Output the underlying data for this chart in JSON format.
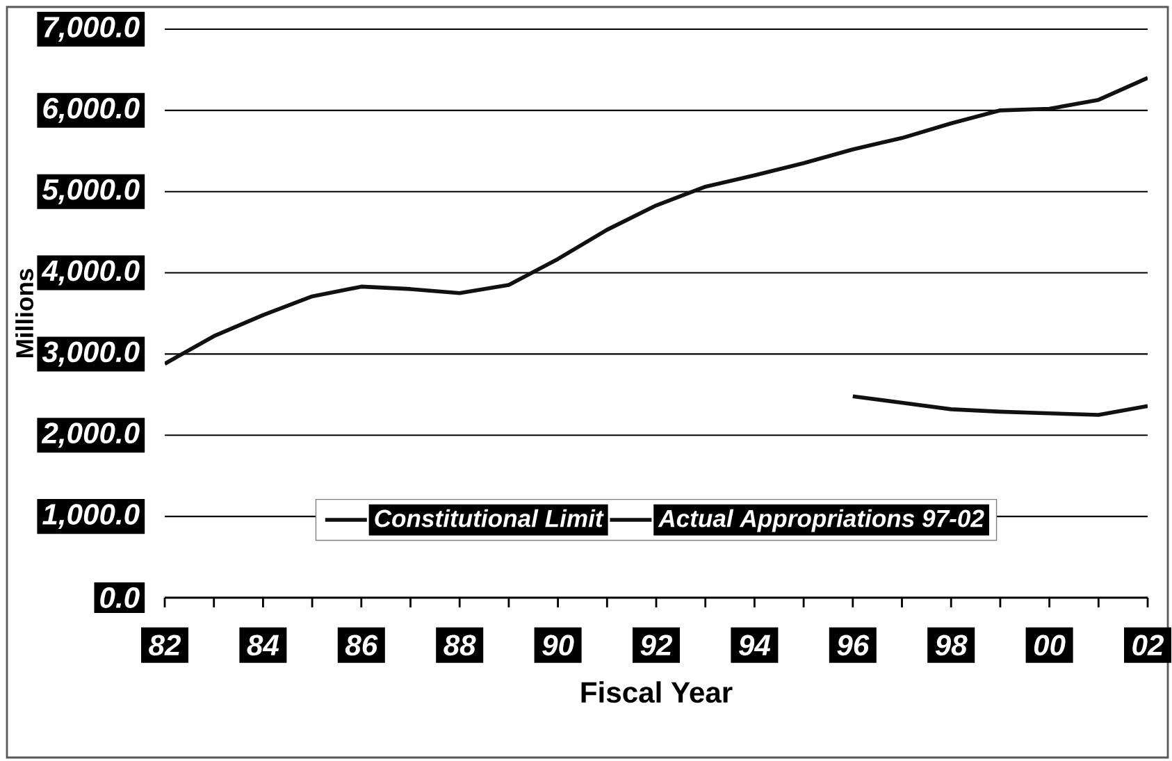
{
  "chart_data": {
    "type": "line",
    "xlabel": "Fiscal Year",
    "ylabel": "Millions",
    "categories": [
      "82",
      null,
      "84",
      null,
      "86",
      null,
      "88",
      null,
      "90",
      null,
      "92",
      null,
      "94",
      null,
      "96",
      null,
      "98",
      null,
      "00",
      null,
      "02"
    ],
    "series": [
      {
        "name": "Constitutional Limit",
        "color": "#111111",
        "values": [
          2880,
          3220,
          3480,
          3710,
          3830,
          3800,
          3750,
          3850,
          4170,
          4530,
          4830,
          5060,
          5200,
          5350,
          5520,
          5660,
          5840,
          6000,
          6020,
          6130,
          6400
        ]
      },
      {
        "name": "Actual Appropriations 97-02",
        "color": "#111111",
        "values": [
          null,
          null,
          null,
          null,
          null,
          null,
          null,
          null,
          null,
          null,
          null,
          null,
          null,
          null,
          2480,
          2400,
          2320,
          2290,
          2270,
          2250,
          2360
        ]
      }
    ],
    "ylim": [
      0,
      7000
    ],
    "yticks": [
      {
        "value": 0,
        "label": "0.0"
      },
      {
        "value": 1000,
        "label": "1,000.0"
      },
      {
        "value": 2000,
        "label": "2,000.0"
      },
      {
        "value": 3000,
        "label": "3,000.0"
      },
      {
        "value": 4000,
        "label": "4,000.0"
      },
      {
        "value": 5000,
        "label": "5,000.0"
      },
      {
        "value": 6000,
        "label": "6,000.0"
      },
      {
        "value": 7000,
        "label": "7,000.0"
      }
    ],
    "grid": "y",
    "legend": "bottom",
    "marker": "none",
    "line_style": "solid"
  }
}
